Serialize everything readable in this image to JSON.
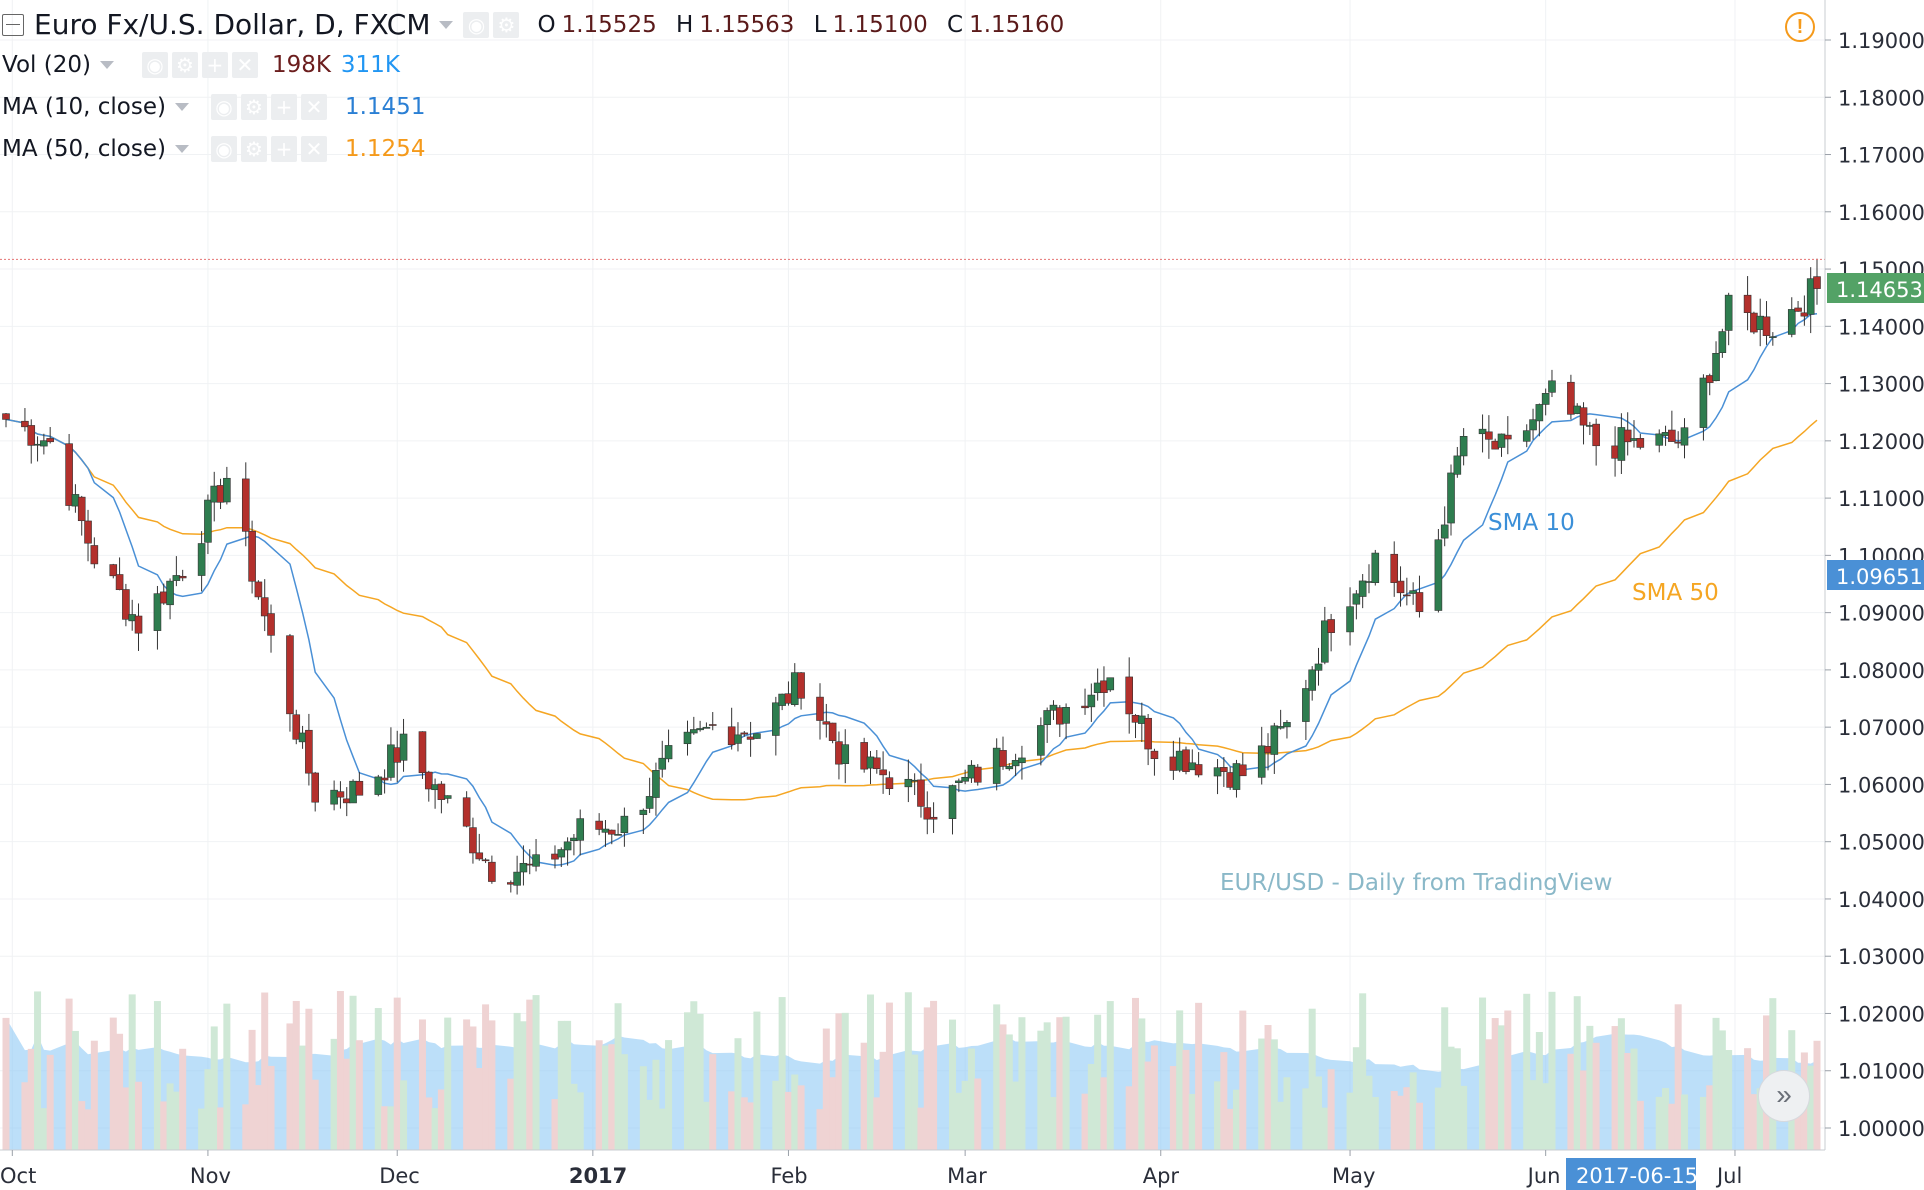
{
  "legend": {
    "symbol": "Euro Fx/U.S. Dollar, D, FXCM",
    "ohlc": {
      "o_label": "O",
      "o": "1.15525",
      "h_label": "H",
      "h": "1.15563",
      "l_label": "L",
      "l": "1.15100",
      "c_label": "C",
      "c": "1.15160"
    },
    "vol": {
      "label": "Vol (20)",
      "v1": "198K",
      "v2": "311K"
    },
    "ma10": {
      "label": "MA (10, close)",
      "value": "1.1451"
    },
    "ma50": {
      "label": "MA (50, close)",
      "value": "1.1254"
    }
  },
  "icons": {
    "collapse": "collapse-icon",
    "eye": "eye-icon",
    "settings": "gear-icon",
    "plus": "plus-icon",
    "close": "close-icon",
    "warning": "warning-icon",
    "scroll": "scroll-right-icon"
  },
  "colors": {
    "up": "#2e7d4f",
    "down": "#b3302c",
    "ma10": "#4a90d6",
    "ma50": "#f5a623",
    "vol_up": "#cfe8d6",
    "vol_down": "#efd3d3",
    "vol_ma": "#90c9f5",
    "current": "#53a266",
    "ma_tag": "#4a90d6"
  },
  "chart_data": {
    "type": "candlestick",
    "title": "EUR/USD - Daily from TradingView",
    "y_axis": {
      "ticks": [
        "1.19000",
        "1.18000",
        "1.17000",
        "1.16000",
        "1.15000",
        "1.14000",
        "1.13000",
        "1.12000",
        "1.11000",
        "1.10000",
        "1.09000",
        "1.08000",
        "1.07000",
        "1.06000",
        "1.05000",
        "1.04000",
        "1.03000",
        "1.02000",
        "1.01000",
        "1.00000"
      ],
      "range": [
        0.9975,
        1.1975
      ]
    },
    "x_axis": {
      "ticks": [
        "Oct",
        "Nov",
        "Dec",
        "2017",
        "Feb",
        "Mar",
        "Apr",
        "May",
        "Jun",
        "Jul"
      ],
      "highlight": "2017-06-15"
    },
    "last_price": "1.14653",
    "ma_label_value": "1.09651",
    "reference_line": 1.1517,
    "annotations": [
      {
        "text": "SMA 10"
      },
      {
        "text": "SMA 50"
      }
    ],
    "anchors": [
      {
        "date": "2016-09-30",
        "close": 1.1238
      },
      {
        "date": "2016-10-07",
        "close": 1.1198
      },
      {
        "date": "2016-10-14",
        "close": 1.0998
      },
      {
        "date": "2016-10-21",
        "close": 1.088
      },
      {
        "date": "2016-10-28",
        "close": 1.098
      },
      {
        "date": "2016-11-04",
        "close": 1.1138
      },
      {
        "date": "2016-11-11",
        "close": 1.085
      },
      {
        "date": "2016-11-18",
        "close": 1.0585
      },
      {
        "date": "2016-11-25",
        "close": 1.059
      },
      {
        "date": "2016-12-02",
        "close": 1.0665
      },
      {
        "date": "2016-12-09",
        "close": 1.0565
      },
      {
        "date": "2016-12-16",
        "close": 1.0455
      },
      {
        "date": "2016-12-23",
        "close": 1.045
      },
      {
        "date": "2016-12-30",
        "close": 1.052
      },
      {
        "date": "2017-01-06",
        "close": 1.053
      },
      {
        "date": "2017-01-13",
        "close": 1.064
      },
      {
        "date": "2017-01-20",
        "close": 1.07
      },
      {
        "date": "2017-01-27",
        "close": 1.0695
      },
      {
        "date": "2017-02-03",
        "close": 1.078
      },
      {
        "date": "2017-02-10",
        "close": 1.064
      },
      {
        "date": "2017-02-17",
        "close": 1.0615
      },
      {
        "date": "2017-02-24",
        "close": 1.056
      },
      {
        "date": "2017-03-03",
        "close": 1.062
      },
      {
        "date": "2017-03-10",
        "close": 1.0675
      },
      {
        "date": "2017-03-17",
        "close": 1.0735
      },
      {
        "date": "2017-03-24",
        "close": 1.0795
      },
      {
        "date": "2017-03-31",
        "close": 1.0665
      },
      {
        "date": "2017-04-07",
        "close": 1.064
      },
      {
        "date": "2017-04-14",
        "close": 1.0618
      },
      {
        "date": "2017-04-21",
        "close": 1.07
      },
      {
        "date": "2017-04-28",
        "close": 1.089
      },
      {
        "date": "2017-05-05",
        "close": 1.0998
      },
      {
        "date": "2017-05-12",
        "close": 1.09
      },
      {
        "date": "2017-05-19",
        "close": 1.1208
      },
      {
        "date": "2017-05-26",
        "close": 1.118
      },
      {
        "date": "2017-06-02",
        "close": 1.128
      },
      {
        "date": "2017-06-09",
        "close": 1.1195
      },
      {
        "date": "2017-06-16",
        "close": 1.1195
      },
      {
        "date": "2017-06-23",
        "close": 1.12
      },
      {
        "date": "2017-06-30",
        "close": 1.1425
      },
      {
        "date": "2017-07-07",
        "close": 1.14
      },
      {
        "date": "2017-07-14",
        "close": 1.1465
      }
    ]
  }
}
